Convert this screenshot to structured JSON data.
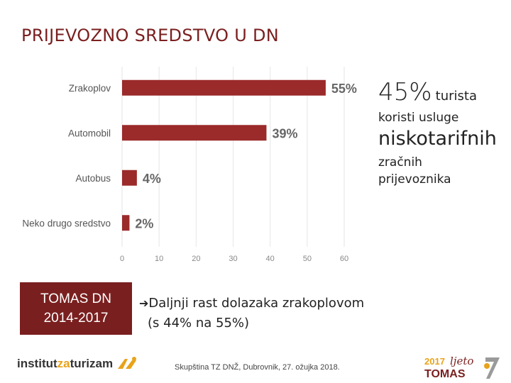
{
  "title": "PRIJEVOZNO SREDSTVO U DN",
  "chart_data": {
    "type": "bar",
    "orientation": "horizontal",
    "categories": [
      "Zrakoplov",
      "Automobil",
      "Autobus",
      "Neko drugo sredstvo"
    ],
    "values": [
      55,
      39,
      4,
      2
    ],
    "value_labels": [
      "55%",
      "39%",
      "4%",
      "2%"
    ],
    "xlim": [
      0,
      60
    ],
    "xticks": [
      "0",
      "10",
      "20",
      "30",
      "40",
      "50",
      "60"
    ],
    "gridlines": true,
    "title": "",
    "xlabel": "",
    "ylabel": ""
  },
  "side": {
    "big": "45%",
    "word1": "turista",
    "line2": "koristi usluge",
    "huge": "niskotarifnih",
    "line4": "zračnih",
    "line5": "prijevoznika"
  },
  "tomas": {
    "line1": "TOMAS DN",
    "line2": "2014-2017"
  },
  "note": {
    "arrow": "➔",
    "line1": "Daljnji rast dolazaka zrakoplovom",
    "line2": "(s 44% na 55%)"
  },
  "footer": "Skupština TZ DNŽ, Dubrovnik, 27. ožujka 2018.",
  "logo_left": {
    "part1": "institut",
    "part2": "za",
    "part3": "turizam"
  },
  "logo_right": {
    "year": "2017",
    "word": "ljeto",
    "brand": "TOMAS"
  },
  "colors": {
    "bar": "#9b2a2a",
    "title": "#7a1f1f",
    "accent": "#e8a31a"
  }
}
